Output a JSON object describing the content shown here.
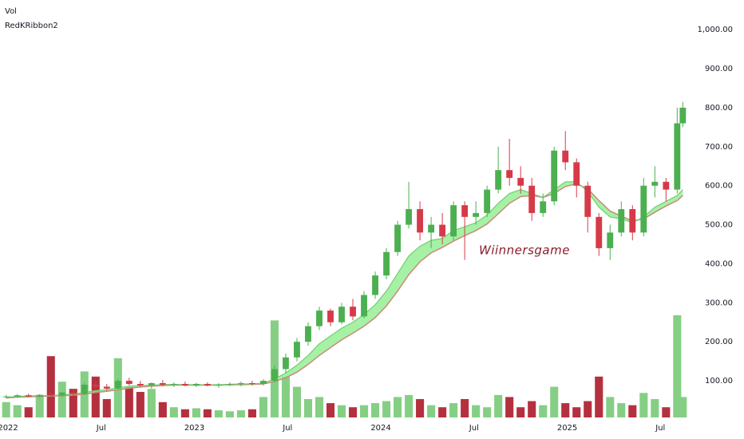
{
  "chart_data": {
    "type": "candlestick",
    "indicators": [
      "Vol",
      "RedKRibbon2"
    ],
    "watermark": "Wiinnersgame",
    "x": [
      2021.99,
      2022.05,
      2022.11,
      2022.17,
      2022.23,
      2022.29,
      2022.35,
      2022.41,
      2022.47,
      2022.53,
      2022.59,
      2022.65,
      2022.71,
      2022.77,
      2022.83,
      2022.89,
      2022.95,
      2023.01,
      2023.07,
      2023.13,
      2023.19,
      2023.25,
      2023.31,
      2023.37,
      2023.43,
      2023.49,
      2023.55,
      2023.61,
      2023.67,
      2023.73,
      2023.79,
      2023.85,
      2023.91,
      2023.97,
      2024.03,
      2024.09,
      2024.15,
      2024.21,
      2024.27,
      2024.33,
      2024.39,
      2024.45,
      2024.51,
      2024.57,
      2024.63,
      2024.69,
      2024.75,
      2024.81,
      2024.87,
      2024.93,
      2024.99,
      2025.05,
      2025.11,
      2025.17,
      2025.23,
      2025.29,
      2025.35,
      2025.41,
      2025.47,
      2025.53,
      2025.59,
      2025.62
    ],
    "open": [
      58,
      60,
      63,
      60,
      64,
      62,
      70,
      66,
      90,
      85,
      80,
      100,
      92,
      88,
      94,
      90,
      92,
      88,
      92,
      88,
      90,
      92,
      94,
      92,
      100,
      130,
      160,
      200,
      240,
      280,
      250,
      290,
      265,
      320,
      370,
      430,
      500,
      540,
      480,
      500,
      470,
      550,
      520,
      530,
      590,
      640,
      620,
      600,
      530,
      560,
      690,
      660,
      600,
      520,
      440,
      480,
      540,
      480,
      600,
      610,
      590,
      760
    ],
    "high": [
      64,
      66,
      67,
      66,
      70,
      72,
      78,
      95,
      98,
      92,
      105,
      108,
      100,
      96,
      102,
      96,
      98,
      95,
      96,
      94,
      96,
      98,
      100,
      104,
      140,
      170,
      210,
      250,
      290,
      285,
      300,
      310,
      330,
      380,
      440,
      510,
      610,
      560,
      520,
      530,
      560,
      560,
      560,
      600,
      700,
      720,
      650,
      620,
      580,
      700,
      740,
      670,
      610,
      530,
      500,
      560,
      550,
      620,
      650,
      620,
      800,
      815
    ],
    "low": [
      55,
      57,
      58,
      56,
      60,
      58,
      62,
      64,
      80,
      75,
      78,
      88,
      84,
      80,
      86,
      84,
      86,
      84,
      86,
      82,
      86,
      86,
      88,
      88,
      96,
      120,
      150,
      190,
      230,
      240,
      245,
      255,
      260,
      310,
      360,
      420,
      490,
      460,
      440,
      450,
      460,
      410,
      500,
      520,
      580,
      600,
      580,
      510,
      520,
      550,
      640,
      570,
      480,
      420,
      410,
      470,
      460,
      470,
      570,
      560,
      580,
      750
    ],
    "close": [
      60,
      63,
      60,
      64,
      62,
      70,
      66,
      90,
      85,
      80,
      100,
      92,
      88,
      94,
      90,
      92,
      88,
      92,
      88,
      90,
      92,
      94,
      92,
      100,
      130,
      160,
      200,
      240,
      280,
      250,
      290,
      265,
      320,
      370,
      430,
      500,
      540,
      480,
      500,
      470,
      550,
      520,
      530,
      590,
      640,
      620,
      600,
      530,
      560,
      690,
      660,
      600,
      520,
      440,
      480,
      540,
      480,
      600,
      610,
      590,
      760,
      800
    ],
    "volume": [
      15,
      12,
      10,
      22,
      60,
      35,
      28,
      45,
      40,
      18,
      58,
      30,
      25,
      28,
      15,
      10,
      8,
      9,
      8,
      7,
      6,
      7,
      8,
      20,
      95,
      40,
      30,
      18,
      20,
      14,
      12,
      10,
      12,
      14,
      16,
      20,
      22,
      18,
      12,
      10,
      14,
      18,
      12,
      10,
      22,
      20,
      10,
      16,
      12,
      30,
      14,
      10,
      16,
      40,
      20,
      14,
      12,
      24,
      18,
      10,
      100,
      20
    ],
    "ribbon": {
      "name": "RedKRibbon2",
      "fast": [
        58,
        60,
        61,
        62,
        62,
        64,
        66,
        70,
        75,
        77,
        82,
        86,
        88,
        89,
        90,
        91,
        90,
        90,
        90,
        90,
        91,
        92,
        92,
        94,
        105,
        120,
        140,
        165,
        195,
        215,
        235,
        250,
        270,
        295,
        330,
        375,
        420,
        445,
        460,
        465,
        485,
        495,
        505,
        525,
        555,
        580,
        590,
        580,
        570,
        590,
        610,
        610,
        585,
        545,
        520,
        515,
        505,
        520,
        545,
        560,
        575,
        590
      ],
      "slow": [
        56,
        58,
        59,
        60,
        61,
        62,
        63,
        66,
        70,
        73,
        77,
        81,
        84,
        86,
        88,
        89,
        89,
        89,
        89,
        89,
        90,
        90,
        91,
        92,
        98,
        108,
        122,
        142,
        165,
        185,
        205,
        222,
        240,
        262,
        292,
        330,
        372,
        405,
        428,
        442,
        458,
        472,
        485,
        502,
        528,
        555,
        572,
        575,
        570,
        580,
        598,
        605,
        592,
        562,
        535,
        522,
        510,
        515,
        532,
        548,
        562,
        575
      ]
    },
    "xlim": [
      2021.957,
      2025.64
    ],
    "xticks": [
      {
        "value": 2022,
        "label": "2022"
      },
      {
        "value": 2022.5,
        "label": "Jul"
      },
      {
        "value": 2023,
        "label": "2023"
      },
      {
        "value": 2023.5,
        "label": "Jul"
      },
      {
        "value": 2024,
        "label": "2024"
      },
      {
        "value": 2024.5,
        "label": "Jul"
      },
      {
        "value": 2025,
        "label": "2025"
      },
      {
        "value": 2025.5,
        "label": "Jul"
      }
    ],
    "ylim": [
      2,
      1076
    ],
    "yticks": [
      {
        "value": 100,
        "label": "100.00"
      },
      {
        "value": 200,
        "label": "200.00"
      },
      {
        "value": 300,
        "label": "300.00"
      },
      {
        "value": 400,
        "label": "400.00"
      },
      {
        "value": 500,
        "label": "500.00"
      },
      {
        "value": 600,
        "label": "600.00"
      },
      {
        "value": 700,
        "label": "700.00"
      },
      {
        "value": 800,
        "label": "800.00"
      },
      {
        "value": 900,
        "label": "900.00"
      },
      {
        "value": 1000,
        "label": "1,000.00"
      }
    ],
    "volume_lim": [
      0,
      100
    ],
    "up_color": "#4caf50",
    "down_color": "#d63a48",
    "volume_up_color": "#85cf85",
    "volume_down_color": "#b5303e",
    "ribbon_fill": "#90ee90",
    "fast_color": "#6fcf6f",
    "slow_color": "#c98a7a"
  }
}
